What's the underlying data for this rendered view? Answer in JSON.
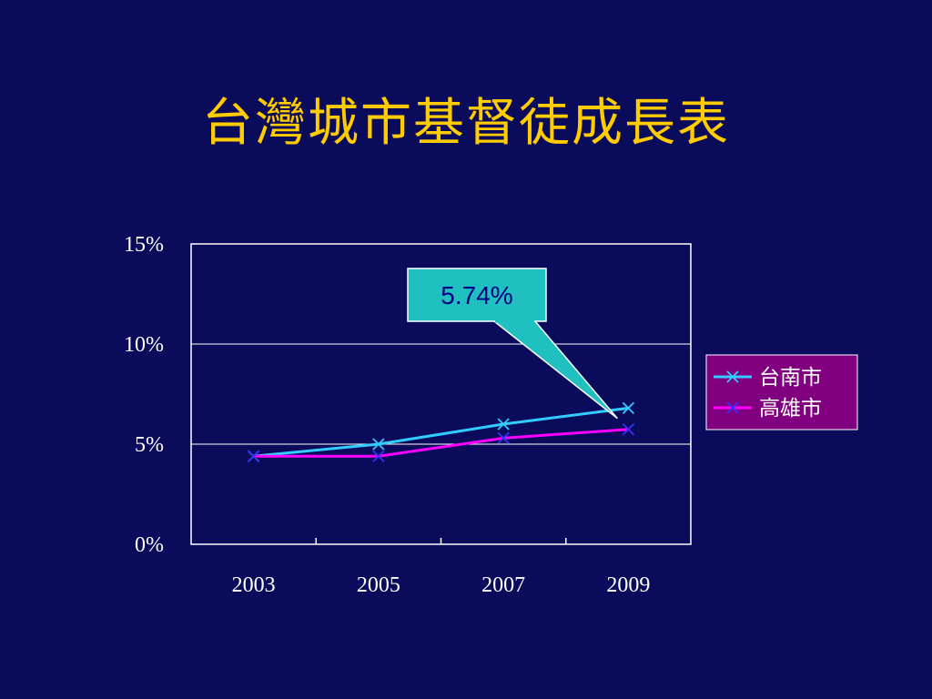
{
  "slide": {
    "title": "台灣城市基督徒成長表"
  },
  "chart_data": {
    "type": "line",
    "x": [
      "2003",
      "2005",
      "2007",
      "2009"
    ],
    "series": [
      {
        "name": "台南市",
        "values": [
          4.4,
          5.0,
          6.0,
          6.8
        ],
        "color": "#33ccff",
        "marker": "x"
      },
      {
        "name": "高雄市",
        "values": [
          4.4,
          4.4,
          5.3,
          5.74
        ],
        "color": "#ff00ff",
        "marker": "x"
      }
    ],
    "ylim": [
      0,
      15
    ],
    "yticks": [
      0,
      5,
      10,
      15
    ],
    "ytick_labels": [
      "0%",
      "5%",
      "10%",
      "15%"
    ],
    "grid": true,
    "legend_position": "right",
    "legend_background": "#800080",
    "plot_background": "#0b0b5c",
    "callout": {
      "text": "5.74%",
      "background": "#20c0c0",
      "points_to_series": "高雄市",
      "points_to_x": "2009"
    }
  }
}
